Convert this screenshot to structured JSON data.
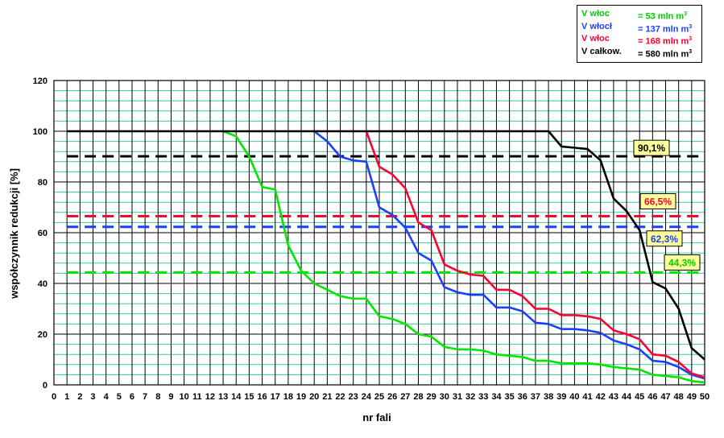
{
  "legend": {
    "items": [
      {
        "name": "V włoc",
        "value": "=   53 mln m",
        "sup": "3",
        "color": "#00cc00"
      },
      {
        "name": "V włocł",
        "value": "= 137 mln m",
        "sup": "3",
        "color": "#1a3fff"
      },
      {
        "name": "V włoc",
        "value": "= 168 mln m",
        "sup": "3",
        "color": "#ff0033"
      },
      {
        "name": "V całkow.",
        "value": "= 580 mln m",
        "sup": "3",
        "color": "#000000"
      }
    ]
  },
  "chart_data": {
    "type": "line",
    "title": "",
    "xlabel": "nr fali",
    "ylabel": "współczynnik redukcji  [%]",
    "xlim": [
      0,
      50
    ],
    "ylim": [
      0,
      120
    ],
    "x_ticks": [
      0,
      1,
      2,
      3,
      4,
      5,
      6,
      7,
      8,
      9,
      10,
      11,
      12,
      13,
      14,
      15,
      16,
      17,
      18,
      19,
      20,
      21,
      22,
      23,
      24,
      25,
      26,
      27,
      28,
      29,
      30,
      31,
      32,
      33,
      34,
      35,
      36,
      37,
      38,
      39,
      40,
      41,
      42,
      43,
      44,
      45,
      46,
      47,
      48,
      49,
      50
    ],
    "y_ticks": [
      0,
      20,
      40,
      60,
      80,
      100,
      120
    ],
    "grid": true,
    "series": [
      {
        "color": "#00e600",
        "points": [
          [
            13,
            100
          ],
          [
            14,
            98
          ],
          [
            15,
            90
          ],
          [
            16,
            78
          ],
          [
            17,
            77
          ],
          [
            18,
            55
          ],
          [
            19,
            45
          ],
          [
            20,
            40
          ],
          [
            21,
            37.5
          ],
          [
            22,
            35
          ],
          [
            23,
            34
          ],
          [
            24,
            34
          ],
          [
            25,
            27
          ],
          [
            26,
            26
          ],
          [
            27,
            24
          ],
          [
            28,
            20
          ],
          [
            29,
            19
          ],
          [
            30,
            15
          ],
          [
            31,
            14
          ],
          [
            32,
            14
          ],
          [
            33,
            13.5
          ],
          [
            34,
            12
          ],
          [
            35,
            11.5
          ],
          [
            36,
            11
          ],
          [
            37,
            9.5
          ],
          [
            38,
            9.5
          ],
          [
            39,
            8.5
          ],
          [
            40,
            8.5
          ],
          [
            41,
            8.5
          ],
          [
            42,
            8
          ],
          [
            43,
            7
          ],
          [
            44,
            6.5
          ],
          [
            45,
            6
          ],
          [
            46,
            4
          ],
          [
            47,
            3.5
          ],
          [
            48,
            3
          ],
          [
            49,
            1.5
          ],
          [
            50,
            1
          ]
        ]
      },
      {
        "color": "#1a3fff",
        "points": [
          [
            20,
            100
          ],
          [
            21,
            96
          ],
          [
            22,
            90
          ],
          [
            23,
            88.5
          ],
          [
            24,
            88
          ],
          [
            25,
            70
          ],
          [
            26,
            67
          ],
          [
            27,
            62
          ],
          [
            28,
            52
          ],
          [
            29,
            49
          ],
          [
            30,
            38.5
          ],
          [
            31,
            36.5
          ],
          [
            32,
            35.5
          ],
          [
            33,
            35.5
          ],
          [
            34,
            30.5
          ],
          [
            35,
            30.5
          ],
          [
            36,
            29
          ],
          [
            37,
            24.5
          ],
          [
            38,
            24
          ],
          [
            39,
            22
          ],
          [
            40,
            22
          ],
          [
            41,
            21.5
          ],
          [
            42,
            20.5
          ],
          [
            43,
            17.5
          ],
          [
            44,
            16
          ],
          [
            45,
            14
          ],
          [
            46,
            9.5
          ],
          [
            47,
            9
          ],
          [
            48,
            7
          ],
          [
            49,
            4
          ],
          [
            50,
            2.5
          ]
        ]
      },
      {
        "color": "#ff0033",
        "points": [
          [
            24,
            100
          ],
          [
            25,
            86
          ],
          [
            26,
            83
          ],
          [
            27,
            77.5
          ],
          [
            28,
            64
          ],
          [
            29,
            61
          ],
          [
            30,
            47.5
          ],
          [
            31,
            45
          ],
          [
            32,
            43.5
          ],
          [
            33,
            43
          ],
          [
            34,
            37.5
          ],
          [
            35,
            37.5
          ],
          [
            36,
            35
          ],
          [
            37,
            30
          ],
          [
            38,
            30
          ],
          [
            39,
            27.5
          ],
          [
            40,
            27.5
          ],
          [
            41,
            27
          ],
          [
            42,
            26
          ],
          [
            43,
            21.5
          ],
          [
            44,
            20
          ],
          [
            45,
            18
          ],
          [
            46,
            12
          ],
          [
            47,
            11.5
          ],
          [
            48,
            9
          ],
          [
            49,
            4.5
          ],
          [
            50,
            3
          ]
        ]
      },
      {
        "color": "#000000",
        "points": [
          [
            1,
            100
          ],
          [
            38,
            100
          ],
          [
            39,
            94
          ],
          [
            40,
            93.5
          ],
          [
            41,
            93
          ],
          [
            42,
            88.5
          ],
          [
            43,
            73.5
          ],
          [
            44,
            68.5
          ],
          [
            45,
            61
          ],
          [
            46,
            40.5
          ],
          [
            47,
            38
          ],
          [
            48,
            30
          ],
          [
            49,
            14.5
          ],
          [
            50,
            10
          ]
        ]
      }
    ],
    "thresholds": [
      {
        "value": 90.1,
        "label": "90,1%",
        "color": "#000000",
        "label_bg": "#ffff99",
        "label_color": "#000000"
      },
      {
        "value": 66.5,
        "label": "66,5%",
        "color": "#ff0033",
        "label_bg": "#ffff99",
        "label_color": "#ff0033"
      },
      {
        "value": 62.3,
        "label": "62,3%",
        "color": "#1a3fff",
        "label_bg": "#ffff99",
        "label_color": "#1a3fff"
      },
      {
        "value": 44.3,
        "label": "44,3%",
        "color": "#00e600",
        "label_bg": "#ffff99",
        "label_color": "#00cc00"
      }
    ]
  }
}
